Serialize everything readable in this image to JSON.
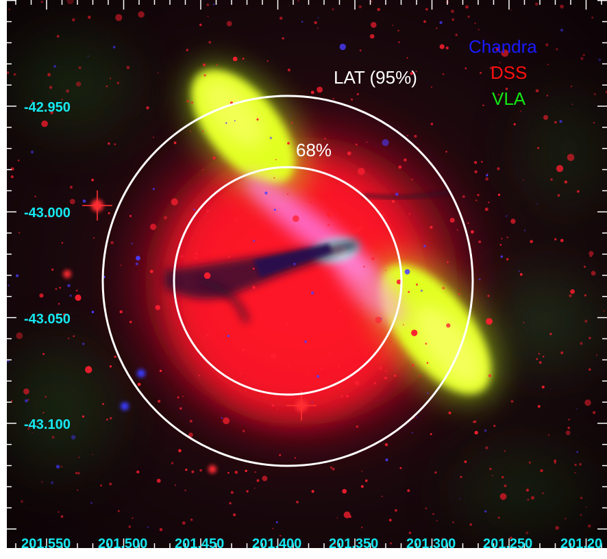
{
  "labels": {
    "lat_95": "LAT (95%)",
    "lat_68": "68%"
  },
  "legend": [
    {
      "text": "Chandra",
      "color": "#1a1aff"
    },
    {
      "text": "DSS",
      "color": "#ff1010"
    },
    {
      "text": "VLA",
      "color": "#12e812"
    }
  ],
  "axes": {
    "dec_ticks": [
      "-42.950",
      "-43.000",
      "-43.050",
      "-43.100"
    ],
    "ra_ticks": [
      "201.550",
      "201.500",
      "201.450",
      "201.400",
      "201.350",
      "201.300",
      "201.250",
      "201.20"
    ]
  },
  "colors": {
    "tick_label": "#16e8f0",
    "circles": "#ffffff",
    "background": "#0b0508"
  }
}
